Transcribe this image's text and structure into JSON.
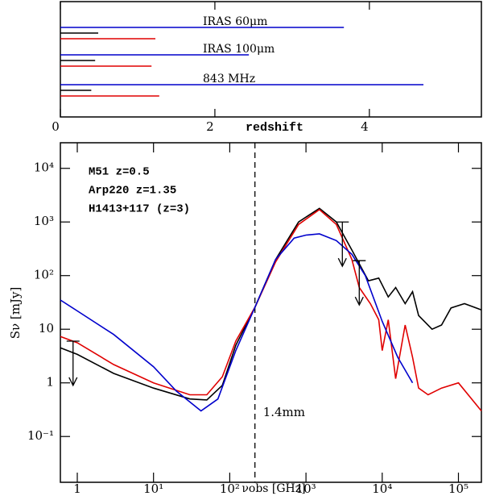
{
  "chart_data": [
    {
      "type": "hbar",
      "xlabel": "redshift",
      "xlim": [
        0,
        5.45
      ],
      "xticks": [
        0,
        2,
        4
      ],
      "groups": [
        "IRAS 60μm",
        "IRAS 100μm",
        "843 MHz"
      ],
      "series": [
        {
          "name": "M51 z=0.5",
          "color": "#000000",
          "values": [
            0.49,
            0.45,
            0.4
          ]
        },
        {
          "name": "Arp220 z=1.35",
          "color": "#e00000",
          "values": [
            1.23,
            1.18,
            1.28
          ]
        },
        {
          "name": "H1413+117 (z=3)",
          "color": "#0000cc",
          "values": [
            3.67,
            2.44,
            4.7
          ]
        }
      ]
    },
    {
      "type": "line",
      "xlabel": "νobs [GHz]",
      "ylabel": "Sν [mJy]",
      "log_x": true,
      "log_y": true,
      "xlim": [
        0.6,
        200000
      ],
      "ylim": [
        0.014,
        30000
      ],
      "xticks": [
        {
          "value": 1,
          "label": "1"
        },
        {
          "value": 10,
          "label": "10¹"
        },
        {
          "value": 100,
          "label": "10²"
        },
        {
          "value": 1000,
          "label": "10³"
        },
        {
          "value": 10000,
          "label": "10⁴"
        },
        {
          "value": 100000,
          "label": "10⁵"
        }
      ],
      "yticks": [
        {
          "value": 0.1,
          "label": "10⁻¹"
        },
        1,
        10,
        {
          "value": 100,
          "label": "10²"
        },
        {
          "value": 1000,
          "label": "10³"
        },
        {
          "value": 10000,
          "label": "10⁴"
        }
      ],
      "vline": {
        "x": 214,
        "label": "1.4mm"
      },
      "series": [
        {
          "name": "M51 z=0.5",
          "color": "#000000",
          "x": [
            0.6,
            1,
            3,
            10,
            30,
            50,
            80,
            120,
            215,
            400,
            800,
            1500,
            2500,
            4000,
            6600,
            9000,
            12000,
            15000,
            20000,
            25000,
            30000,
            45000,
            60000,
            80000,
            120000,
            200000
          ],
          "values": [
            4.5,
            3.4,
            1.5,
            0.8,
            0.5,
            0.48,
            0.9,
            5,
            26,
            200,
            1000,
            1800,
            1000,
            300,
            80,
            90,
            40,
            60,
            30,
            50,
            18,
            10,
            12,
            25,
            30,
            23
          ]
        },
        {
          "name": "Arp220 z=1.35",
          "color": "#e00000",
          "x": [
            0.6,
            1,
            3,
            10,
            30,
            50,
            80,
            120,
            215,
            400,
            800,
            1500,
            2500,
            4000,
            5000,
            7000,
            9000,
            10000,
            12000,
            15000,
            20000,
            25000,
            30000,
            40000,
            60000,
            100000,
            200000
          ],
          "values": [
            7.3,
            5.6,
            2.2,
            1,
            0.6,
            0.6,
            1.3,
            6,
            26,
            180,
            900,
            1700,
            900,
            200,
            60,
            30,
            15,
            4,
            15,
            1.2,
            12,
            3,
            0.8,
            0.6,
            0.8,
            1,
            0.3
          ]
        },
        {
          "name": "H1413+117 (z=3)",
          "color": "#0000cc",
          "x": [
            0.6,
            1,
            3,
            10,
            20,
            42,
            70,
            120,
            215,
            400,
            700,
            1000,
            1500,
            2500,
            4000,
            6000,
            10000,
            16000,
            25000
          ],
          "values": [
            35,
            22,
            8,
            2,
            0.7,
            0.3,
            0.5,
            4,
            26,
            200,
            500,
            570,
            600,
            450,
            250,
            100,
            14,
            3,
            1
          ]
        }
      ],
      "upper_limits": {
        "x": [
          0.88,
          3000,
          5000
        ],
        "values": [
          6,
          1000,
          190
        ]
      }
    }
  ]
}
